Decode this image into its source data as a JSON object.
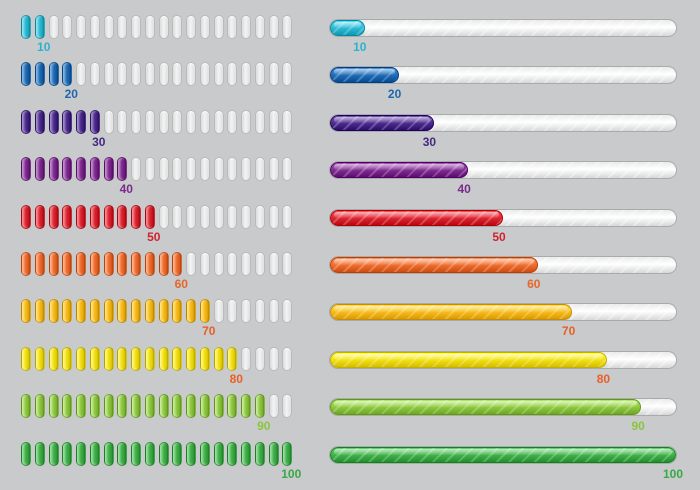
{
  "segment_count": 20,
  "items": [
    {
      "value": 10,
      "label": "10",
      "color": "#2bb7d0",
      "text_color": "#2ab3cc"
    },
    {
      "value": 20,
      "label": "20",
      "color": "#1f6ab3",
      "text_color": "#1f67ad"
    },
    {
      "value": 30,
      "label": "30",
      "color": "#4a2a8a",
      "text_color": "#452884"
    },
    {
      "value": 40,
      "label": "40",
      "color": "#7d2a8e",
      "text_color": "#7a2a8b"
    },
    {
      "value": 50,
      "label": "50",
      "color": "#d9232f",
      "text_color": "#d1222d"
    },
    {
      "value": 60,
      "label": "60",
      "color": "#ec6a2c",
      "text_color": "#e5672b"
    },
    {
      "value": 70,
      "label": "70",
      "color": "#f6b818",
      "text_color": "#e95f25"
    },
    {
      "value": 80,
      "label": "80",
      "color": "#f0dc12",
      "text_color": "#e95f25"
    },
    {
      "value": 90,
      "label": "90",
      "color": "#8cc63f",
      "text_color": "#8bc53f"
    },
    {
      "value": 100,
      "label": "100",
      "color": "#3fae49",
      "text_color": "#3aa845"
    }
  ]
}
